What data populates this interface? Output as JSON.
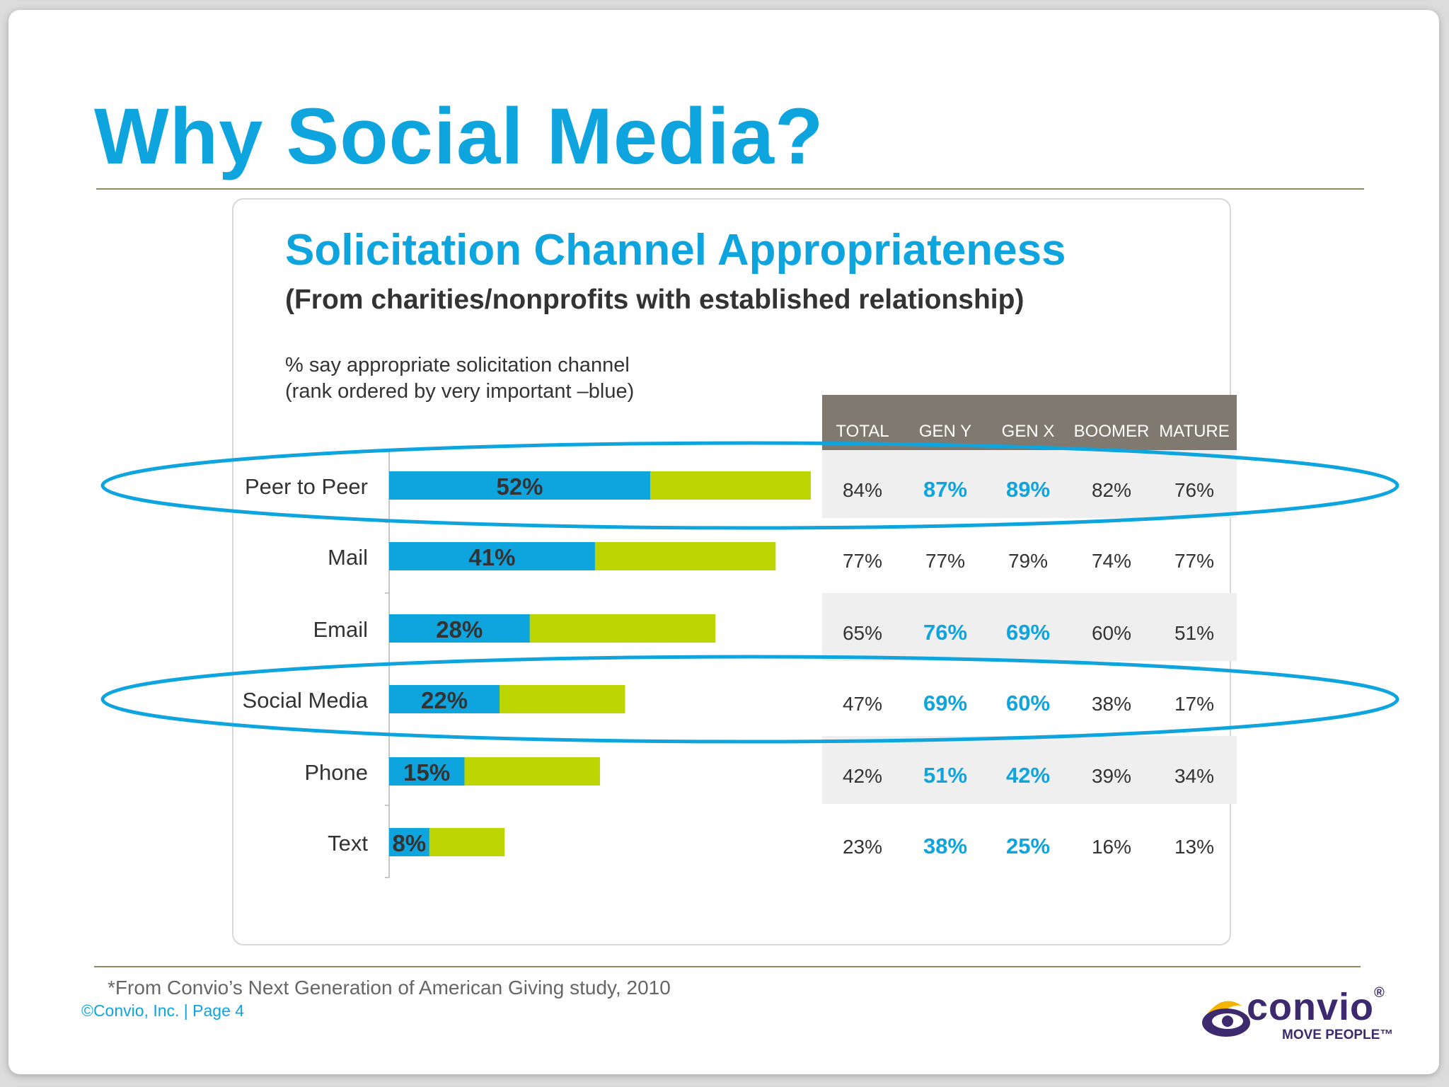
{
  "slide_title": "Why Social Media?",
  "chart_data": {
    "type": "bar",
    "title": "Solicitation Channel Appropriateness",
    "subtitle": "(From charities/nonprofits with established relationship)",
    "note_line1": "% say appropriate solicitation channel",
    "note_line2": "(rank ordered by very important –blue)",
    "categories": [
      "Peer to Peer",
      "Mail",
      "Email",
      "Social Media",
      "Phone",
      "Text"
    ],
    "series": [
      {
        "values": [
          52,
          41,
          28,
          22,
          15,
          8
        ],
        "labels": [
          "52%",
          "41%",
          "28%",
          "22%",
          "15%",
          "8%"
        ],
        "color": "#0ea5de"
      },
      {
        "values": [
          84,
          77,
          65,
          47,
          42,
          23
        ],
        "color": "#bcd400"
      }
    ],
    "xlim": [
      0,
      84
    ],
    "highlighted": [
      "Peer to Peer",
      "Social Media"
    ],
    "table": {
      "columns": [
        "TOTAL",
        "GEN Y",
        "GEN X",
        "BOOMER",
        "MATURE"
      ],
      "rows": [
        [
          "84%",
          "87%",
          "89%",
          "82%",
          "76%"
        ],
        [
          "77%",
          "77%",
          "79%",
          "74%",
          "77%"
        ],
        [
          "65%",
          "76%",
          "69%",
          "60%",
          "51%"
        ],
        [
          "47%",
          "69%",
          "60%",
          "38%",
          "17%"
        ],
        [
          "42%",
          "51%",
          "42%",
          "39%",
          "34%"
        ],
        [
          "23%",
          "38%",
          "25%",
          "16%",
          "13%"
        ]
      ],
      "highlight_cells": [
        [
          0,
          1
        ],
        [
          0,
          2
        ],
        [
          2,
          1
        ],
        [
          2,
          2
        ],
        [
          3,
          1
        ],
        [
          3,
          2
        ],
        [
          4,
          1
        ],
        [
          4,
          2
        ],
        [
          5,
          1
        ],
        [
          5,
          2
        ]
      ]
    }
  },
  "colors": {
    "accent": "#0ea5de",
    "green": "#bcd400",
    "header_bg": "#7f7970",
    "row_shade": "#efefef",
    "brand_purple": "#3d2a6e",
    "brand_yellow": "#f4b400"
  },
  "footnote": "*From Convio’s Next Generation of American Giving study, 2010",
  "copyright": "©Convio, Inc.  |  Page   4",
  "logo": {
    "word": "convio",
    "registered": "®",
    "tagline": "MOVE PEOPLE™"
  }
}
